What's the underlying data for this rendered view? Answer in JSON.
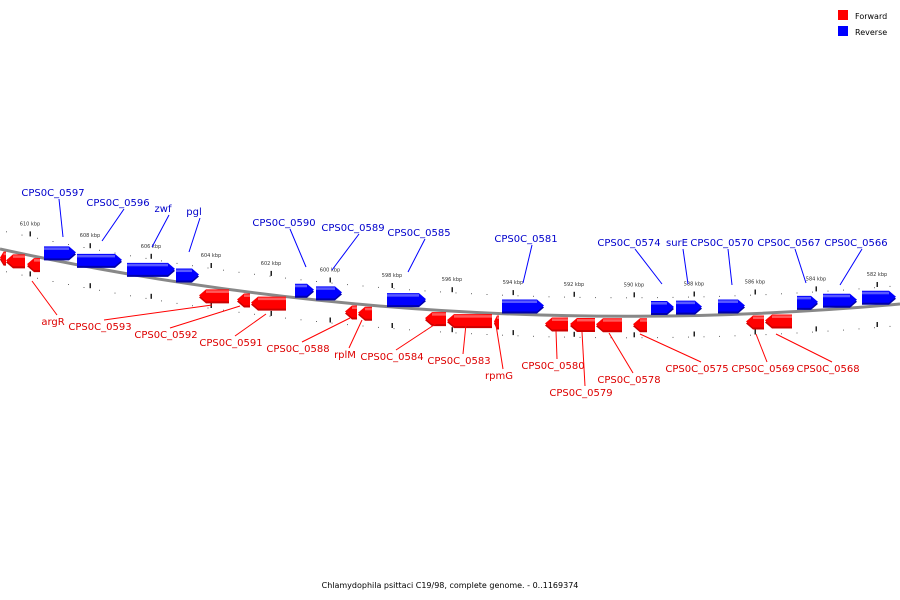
{
  "legend": {
    "forward_label": "Forward",
    "reverse_label": "Reverse",
    "forward_color": "#ff0000",
    "reverse_color": "#0000ff"
  },
  "caption": "Chlamydophila psittaci C19/98, complete genome. - 0..1169374",
  "colors": {
    "forward_fill": "#ff0000",
    "forward_dark": "#cc0000",
    "forward_label": "#dd0000",
    "reverse_fill": "#0000ff",
    "reverse_dark": "#0000aa",
    "reverse_label": "#0000cc",
    "backbone": "#888888"
  },
  "ticks": [
    "610 kbp",
    "608 kbp",
    "606 kbp",
    "604 kbp",
    "602 kbp",
    "600 kbp",
    "598 kbp",
    "596 kbp",
    "594 kbp",
    "592 kbp",
    "590 kbp",
    "588 kbp",
    "586 kbp",
    "584 kbp",
    "582 kbp"
  ],
  "genes_reverse": [
    "CPS0C_0597",
    "CPS0C_0596",
    "zwf",
    "pgl",
    "CPS0C_0590",
    "CPS0C_0589",
    "CPS0C_0585",
    "CPS0C_0581",
    "CPS0C_0574",
    "surE",
    "CPS0C_0570",
    "CPS0C_0567",
    "CPS0C_0566"
  ],
  "genes_forward": [
    "argR",
    "CPS0C_0593",
    "CPS0C_0592",
    "CPS0C_0591",
    "CPS0C_0588",
    "rplM",
    "CPS0C_0584",
    "CPS0C_0583",
    "rpmG",
    "CPS0C_0580",
    "CPS0C_0579",
    "CPS0C_0578",
    "CPS0C_0575",
    "CPS0C_0569",
    "CPS0C_0568"
  ]
}
